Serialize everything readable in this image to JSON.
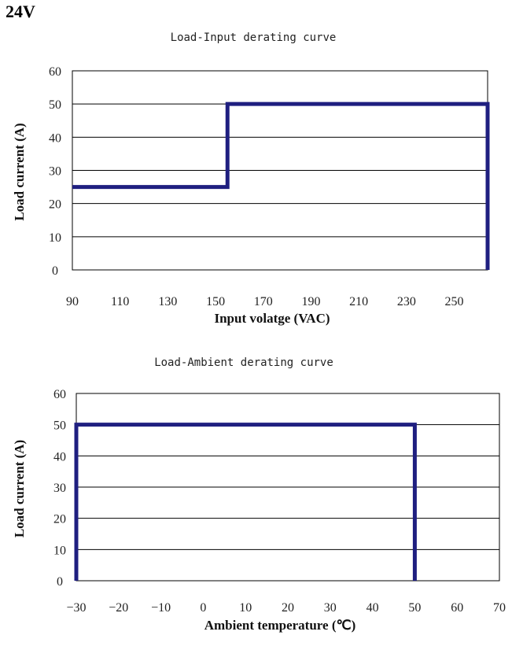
{
  "page": {
    "heading": "24V"
  },
  "colors": {
    "series": "#1f1f80",
    "grid": "#000000",
    "text": "#222222"
  },
  "chart_data": [
    {
      "type": "line",
      "title": "Load-Input derating curve",
      "xlabel": "Input volatge (VAC)",
      "ylabel": "Load current (A)",
      "xlim": [
        90,
        264
      ],
      "ylim": [
        0,
        60
      ],
      "x_ticks": [
        "90",
        "110",
        "130",
        "150",
        "170",
        "190",
        "210",
        "230",
        "250"
      ],
      "x_tick_values": [
        90,
        110,
        130,
        150,
        170,
        190,
        210,
        230,
        250
      ],
      "y_ticks": [
        "0",
        "10",
        "20",
        "30",
        "40",
        "50",
        "60"
      ],
      "y_tick_values": [
        0,
        10,
        20,
        30,
        40,
        50,
        60
      ],
      "grid": true,
      "series": [
        {
          "x": [
            90,
            155,
            155,
            264,
            264
          ],
          "y": [
            25,
            25,
            50,
            50,
            0
          ]
        }
      ]
    },
    {
      "type": "line",
      "title": "Load-Ambient derating curve",
      "xlabel": "Ambient temperature (℃)",
      "ylabel": "Load current (A)",
      "xlim": [
        -30,
        70
      ],
      "ylim": [
        0,
        60
      ],
      "x_ticks": [
        "−30",
        "−20",
        "−10",
        "0",
        "10",
        "20",
        "30",
        "40",
        "50",
        "60",
        "70"
      ],
      "x_tick_values": [
        -30,
        -20,
        -10,
        0,
        10,
        20,
        30,
        40,
        50,
        60,
        70
      ],
      "y_ticks": [
        "0",
        "10",
        "20",
        "30",
        "40",
        "50",
        "60"
      ],
      "y_tick_values": [
        0,
        10,
        20,
        30,
        40,
        50,
        60
      ],
      "grid": true,
      "series": [
        {
          "x": [
            -30,
            -30,
            50,
            50
          ],
          "y": [
            0,
            50,
            50,
            0
          ]
        }
      ]
    }
  ]
}
